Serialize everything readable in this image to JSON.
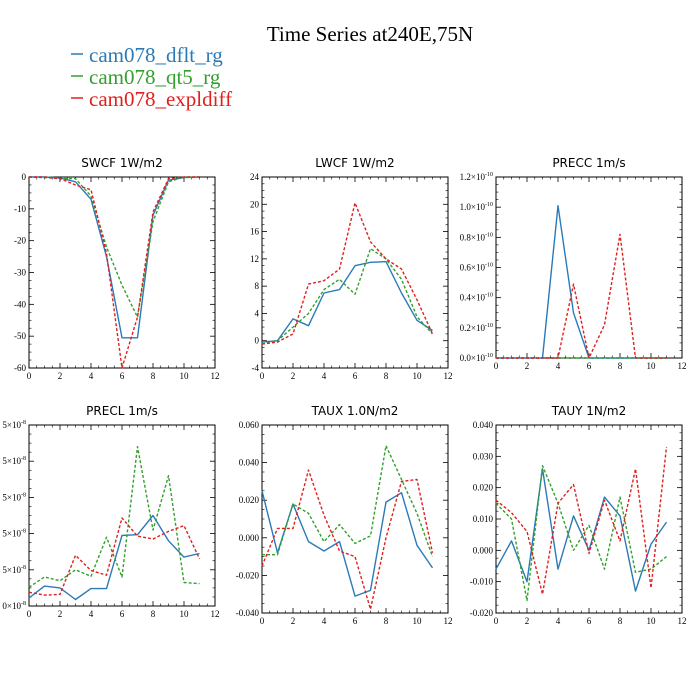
{
  "figure": {
    "title": "Time Series at240E,75N",
    "legend": [
      {
        "name": "cam078_dflt_rg",
        "color": "#2a7ab8",
        "dash": false
      },
      {
        "name": "cam078_qt5_rg",
        "color": "#32a02c",
        "dash": true
      },
      {
        "name": "cam078_expldiff",
        "color": "#e0201e",
        "dash": true
      }
    ]
  },
  "chart_data": [
    {
      "type": "line",
      "title": "SWCF   1W/m2",
      "xlim": [
        0,
        12
      ],
      "ylim": [
        -60,
        0
      ],
      "xticks": [
        "0",
        "2",
        "4",
        "6",
        "8",
        "10",
        "12"
      ],
      "yticks": [
        {
          "v": 0,
          "t": "0"
        },
        {
          "v": -10,
          "t": "-10"
        },
        {
          "v": -20,
          "t": "-20"
        },
        {
          "v": -30,
          "t": "-30"
        },
        {
          "v": -40,
          "t": "-40"
        },
        {
          "v": -50,
          "t": "-50"
        },
        {
          "v": -60,
          "t": "-60"
        }
      ],
      "x": [
        0,
        1,
        2,
        3,
        4,
        5,
        6,
        7,
        8,
        9,
        10,
        11
      ],
      "series": [
        {
          "name": "cam078_dflt_rg",
          "values": [
            0,
            0,
            -0.3,
            -1.5,
            -7,
            -25,
            -50.5,
            -50.5,
            -12,
            -1,
            -0.2,
            0
          ]
        },
        {
          "name": "cam078_qt5_rg",
          "values": [
            0,
            -0.2,
            -0.5,
            -0.5,
            -6,
            -22,
            -34,
            -44,
            -14,
            -1.5,
            0,
            0
          ]
        },
        {
          "name": "cam078_expldiff",
          "values": [
            0,
            0,
            -0.5,
            -2.5,
            -4,
            -24,
            -60,
            -44,
            -11,
            -0.5,
            0,
            0
          ]
        }
      ]
    },
    {
      "type": "line",
      "title": "LWCF   1W/m2",
      "xlim": [
        0,
        12
      ],
      "ylim": [
        -4,
        24
      ],
      "xticks": [
        "0",
        "2",
        "4",
        "6",
        "8",
        "10",
        "12"
      ],
      "yticks": [
        {
          "v": -4,
          "t": "-4"
        },
        {
          "v": 0,
          "t": "0"
        },
        {
          "v": 4,
          "t": "4"
        },
        {
          "v": 8,
          "t": "8"
        },
        {
          "v": 12,
          "t": "12"
        },
        {
          "v": 16,
          "t": "16"
        },
        {
          "v": 20,
          "t": "20"
        },
        {
          "v": 24,
          "t": "24"
        }
      ],
      "x": [
        0,
        1,
        2,
        3,
        4,
        5,
        6,
        7,
        8,
        9,
        10,
        11
      ],
      "series": [
        {
          "name": "cam078_dflt_rg",
          "values": [
            -0.2,
            0,
            3.2,
            2.2,
            7,
            7.5,
            11,
            11.5,
            11.6,
            7,
            3,
            1.5
          ]
        },
        {
          "name": "cam078_qt5_rg",
          "values": [
            -0.5,
            0,
            2,
            4,
            7.5,
            9,
            6.8,
            13.5,
            12,
            9,
            3.5,
            1
          ]
        },
        {
          "name": "cam078_expldiff",
          "values": [
            -0.5,
            -0.2,
            1,
            8.3,
            8.8,
            10.5,
            20.2,
            14.5,
            12,
            10.5,
            6,
            1
          ]
        }
      ]
    },
    {
      "type": "line",
      "title": "PRECC   1m/s",
      "xlim": [
        0,
        12
      ],
      "ylim": [
        0,
        1.2
      ],
      "xticks": [
        "0",
        "2",
        "4",
        "6",
        "8",
        "10",
        "12"
      ],
      "yticks": [
        {
          "v": 0,
          "m": "0.0"
        },
        {
          "v": 0.2,
          "m": "0.2"
        },
        {
          "v": 0.4,
          "m": "0.4"
        },
        {
          "v": 0.6,
          "m": "0.6"
        },
        {
          "v": 0.8,
          "m": "0.8"
        },
        {
          "v": 1.0,
          "m": "1.0"
        },
        {
          "v": 1.2,
          "m": "1.2"
        }
      ],
      "ytick_suffix": "×10",
      "ytick_exp": "-10",
      "x": [
        0,
        1,
        2,
        3,
        4,
        5,
        6,
        7,
        8,
        9,
        10,
        11
      ],
      "series": [
        {
          "name": "cam078_dflt_rg",
          "values": [
            0,
            0,
            0,
            0,
            1.01,
            0.3,
            0,
            0,
            0,
            0,
            0,
            0
          ]
        },
        {
          "name": "cam078_qt5_rg",
          "values": [
            0,
            0,
            0,
            0,
            0,
            0,
            0,
            0,
            0,
            0,
            0,
            0
          ]
        },
        {
          "name": "cam078_expldiff",
          "values": [
            0,
            0,
            0,
            0,
            0,
            0.49,
            0,
            0.22,
            0.82,
            0,
            0,
            0
          ]
        }
      ]
    },
    {
      "type": "line",
      "title": "PRECL   1m/s",
      "xlim": [
        0,
        12
      ],
      "ylim": [
        1,
        6
      ],
      "xticks": [
        "0",
        "2",
        "4",
        "6",
        "8",
        "10",
        "12"
      ],
      "yticks": [
        {
          "v": 1,
          "m": "0"
        },
        {
          "v": 2,
          "m": "5"
        },
        {
          "v": 3,
          "m": "5"
        },
        {
          "v": 4,
          "m": "5"
        },
        {
          "v": 5,
          "m": "5"
        },
        {
          "v": 6,
          "m": "5"
        }
      ],
      "ytick_suffix": "×10",
      "ytick_exp": "-8",
      "x": [
        0,
        1,
        2,
        3,
        4,
        5,
        6,
        7,
        8,
        9,
        10,
        11
      ],
      "series": [
        {
          "name": "cam078_dflt_rg",
          "values": [
            1.22,
            1.55,
            1.5,
            1.18,
            1.48,
            1.48,
            2.95,
            2.97,
            3.5,
            2.8,
            2.35,
            2.45
          ]
        },
        {
          "name": "cam078_qt5_rg",
          "values": [
            1.52,
            1.8,
            1.7,
            2.0,
            1.82,
            2.9,
            1.8,
            5.4,
            3.1,
            4.6,
            1.65,
            1.62
          ]
        },
        {
          "name": "cam078_expldiff",
          "values": [
            1.38,
            1.3,
            1.32,
            2.4,
            1.98,
            1.85,
            3.43,
            2.93,
            2.85,
            3.06,
            3.22,
            2.3
          ]
        }
      ]
    },
    {
      "type": "line",
      "title": "TAUX   1.0N/m2",
      "xlim": [
        0,
        12
      ],
      "ylim": [
        -0.04,
        0.06
      ],
      "xticks": [
        "0",
        "2",
        "4",
        "6",
        "8",
        "10",
        "12"
      ],
      "yticks": [
        {
          "v": -0.04,
          "t": "-0.040"
        },
        {
          "v": -0.02,
          "t": "-0.020"
        },
        {
          "v": 0,
          "t": "0.000"
        },
        {
          "v": 0.02,
          "t": "0.020"
        },
        {
          "v": 0.04,
          "t": "0.040"
        },
        {
          "v": 0.06,
          "t": "0.060"
        }
      ],
      "x": [
        0,
        1,
        2,
        3,
        4,
        5,
        6,
        7,
        8,
        9,
        10,
        11
      ],
      "series": [
        {
          "name": "cam078_dflt_rg",
          "values": [
            0.025,
            -0.008,
            0.018,
            -0.002,
            -0.007,
            -0.002,
            -0.031,
            -0.028,
            0.019,
            0.024,
            -0.004,
            -0.016
          ]
        },
        {
          "name": "cam078_qt5_rg",
          "values": [
            -0.009,
            -0.009,
            0.018,
            0.013,
            -0.002,
            0.007,
            -0.003,
            0.001,
            0.049,
            0.031,
            0.013,
            -0.01
          ]
        },
        {
          "name": "cam078_expldiff",
          "values": [
            -0.015,
            0.005,
            0.005,
            0.036,
            0.012,
            -0.007,
            -0.01,
            -0.038,
            0,
            0.03,
            0.031,
            -0.008
          ]
        }
      ]
    },
    {
      "type": "line",
      "title": "TAUY   1N/m2",
      "xlim": [
        0,
        12
      ],
      "ylim": [
        -0.02,
        0.04
      ],
      "xticks": [
        "0",
        "2",
        "4",
        "6",
        "8",
        "10",
        "12"
      ],
      "yticks": [
        {
          "v": -0.02,
          "t": "-0.020"
        },
        {
          "v": -0.01,
          "t": "-0.010"
        },
        {
          "v": 0,
          "t": "0.000"
        },
        {
          "v": 0.01,
          "t": "0.010"
        },
        {
          "v": 0.02,
          "t": "0.020"
        },
        {
          "v": 0.03,
          "t": "0.030"
        },
        {
          "v": 0.04,
          "t": "0.040"
        }
      ],
      "x": [
        0,
        1,
        2,
        3,
        4,
        5,
        6,
        7,
        8,
        9,
        10,
        11
      ],
      "series": [
        {
          "name": "cam078_dflt_rg",
          "values": [
            -0.006,
            0.003,
            -0.01,
            0.026,
            -0.006,
            0.011,
            0,
            0.017,
            0.011,
            -0.013,
            0.002,
            0.009
          ]
        },
        {
          "name": "cam078_qt5_rg",
          "values": [
            0.015,
            0.01,
            -0.016,
            0.027,
            0.015,
            0,
            0.008,
            -0.006,
            0.017,
            -0.007,
            -0.006,
            -0.002
          ]
        },
        {
          "name": "cam078_expldiff",
          "values": [
            0.016,
            0.012,
            0.006,
            -0.014,
            0.015,
            0.021,
            -0.001,
            0.016,
            0.003,
            0.026,
            -0.012,
            0.033
          ]
        }
      ]
    }
  ]
}
